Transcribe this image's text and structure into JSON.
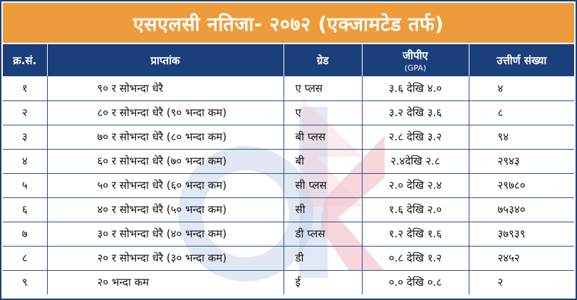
{
  "title": "एसएलसी नतिजा- २०७२ (एक्जामटेड तर्फ)",
  "colors": {
    "title_bg": "#ee9c3b",
    "header_bg": "#1b3f7a",
    "grid": "#2c4f8a"
  },
  "table": {
    "headers": {
      "serial": "क्र.सं.",
      "marks": "प्राप्तांक",
      "grade": "ग्रेड",
      "gpa": "जीपीए",
      "gpa_sub": "(GPA)",
      "passed": "उत्तीर्ण संख्या"
    },
    "rows": [
      {
        "serial": "१",
        "marks": "९० र सोभन्दा धेरै",
        "grade": "ए प्लस",
        "gpa": "३.६ देखि ४.०",
        "passed": "४"
      },
      {
        "serial": "२",
        "marks": "८० र सोभन्दा धेरै (९० भन्दा कम)",
        "grade": "ए",
        "gpa": "३.२ देखि ३.६",
        "passed": "८"
      },
      {
        "serial": "३",
        "marks": "७० र सोभन्दा धेरै (८० भन्दा कम)",
        "grade": "बी प्लस",
        "gpa": "२.८ देखि ३.२",
        "passed": "९४"
      },
      {
        "serial": "४",
        "marks": "६० र सोभन्दा धेरै (७० भन्दा कम)",
        "grade": "बी",
        "gpa": "२.४देखि २.८",
        "passed": "२९४३"
      },
      {
        "serial": "५",
        "marks": "५० र सोभन्दा धेरै (६० भन्दा कम)",
        "grade": "सी प्लस",
        "gpa": "२.० देखि २.४",
        "passed": "२९७८०"
      },
      {
        "serial": "६",
        "marks": "४० र सोभन्दा धेरै (५० भन्दा कम)",
        "grade": "सी",
        "gpa": "१.६ देखि २.०",
        "passed": "७५३४०"
      },
      {
        "serial": "७",
        "marks": "३० र सोभन्दा धेरै (४० भन्दा कम)",
        "grade": "डी प्लस",
        "gpa": "१.२ देखि १.६",
        "passed": "३७९३९"
      },
      {
        "serial": "८",
        "marks": "२० र सोभन्दा धेरै (३० भन्दा कम)",
        "grade": "डी",
        "gpa": "०.८ देखि १.२",
        "passed": "२४५२"
      },
      {
        "serial": "९",
        "marks": "२० भन्दा कम",
        "grade": "ई",
        "gpa": "०.० देखि ०.८",
        "passed": "२"
      }
    ]
  }
}
